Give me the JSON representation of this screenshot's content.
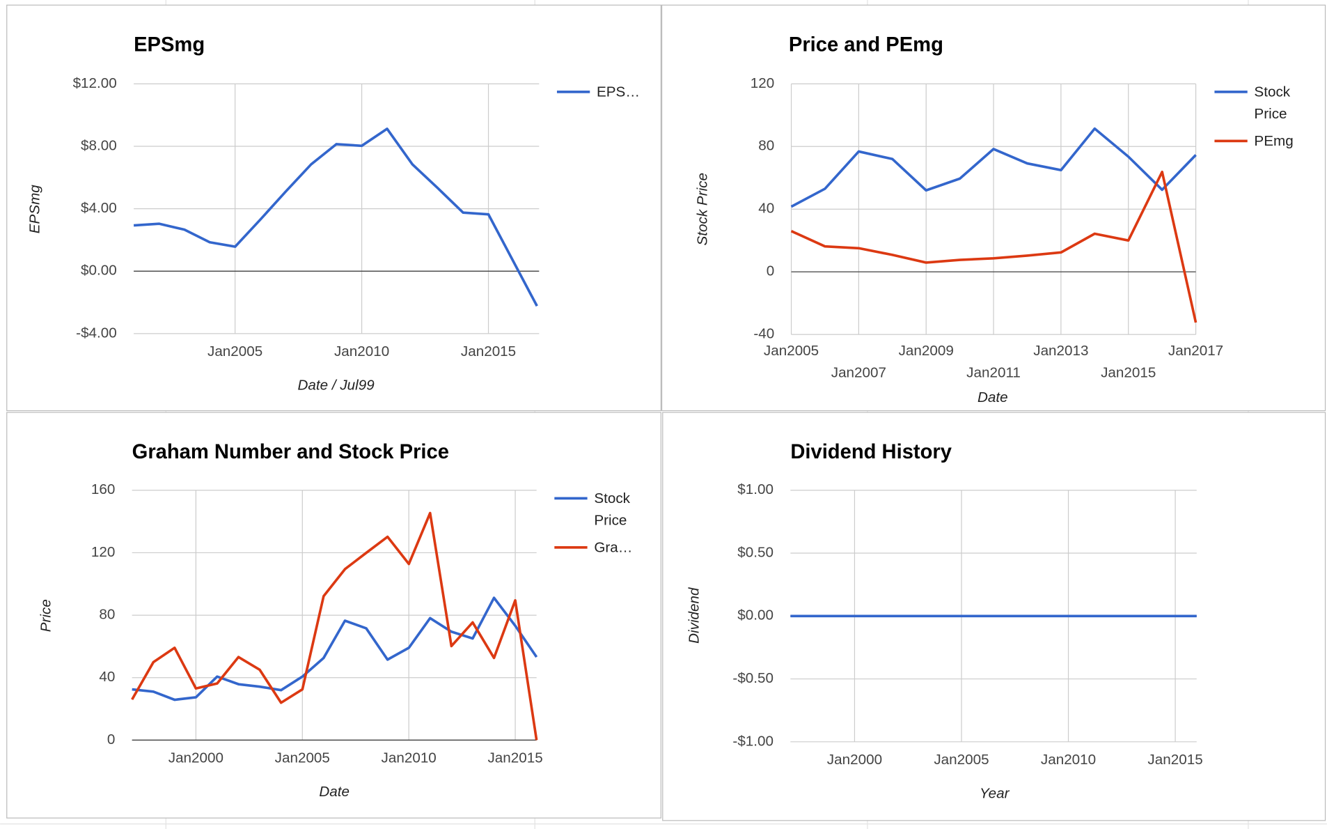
{
  "chart_data": [
    {
      "type": "line",
      "title": "EPSmg",
      "xlabel": "Date / Jul99",
      "ylabel": "EPSmg",
      "x": [
        "2001-01",
        "2002-01",
        "2003-01",
        "2004-01",
        "2005-01",
        "2006-01",
        "2007-01",
        "2008-01",
        "2009-01",
        "2010-01",
        "2011-01",
        "2012-01",
        "2013-01",
        "2014-01",
        "2015-01",
        "2016-12"
      ],
      "series": [
        {
          "name": "EPS…",
          "color": "#3366cc",
          "values": [
            2.93,
            3.04,
            2.66,
            1.85,
            1.57,
            3.31,
            5.1,
            6.84,
            8.14,
            8.03,
            9.12,
            6.84,
            5.32,
            3.75,
            3.64,
            -2.23
          ]
        }
      ],
      "xlim": [
        "2001-01",
        "2017-01"
      ],
      "xticks": [
        {
          "value": "2005-01",
          "label": "Jan2005"
        },
        {
          "value": "2010-01",
          "label": "Jan2010"
        },
        {
          "value": "2015-01",
          "label": "Jan2015"
        }
      ],
      "ylim": [
        -4,
        12
      ],
      "yticks": [
        {
          "value": 12,
          "label": "$12.00"
        },
        {
          "value": 8,
          "label": "$8.00"
        },
        {
          "value": 4,
          "label": "$4.00"
        },
        {
          "value": 0,
          "label": "$0.00"
        },
        {
          "value": -4,
          "label": "-$4.00"
        }
      ],
      "grid": true,
      "legend": "right"
    },
    {
      "type": "line",
      "title": "Price and PEmg",
      "xlabel": "Date",
      "ylabel": "Stock Price",
      "x": [
        "2005-01",
        "2006-01",
        "2007-01",
        "2008-01",
        "2009-01",
        "2010-01",
        "2011-01",
        "2012-01",
        "2013-01",
        "2014-01",
        "2015-01",
        "2016-01",
        "2017-01"
      ],
      "series": [
        {
          "name": "Stock Price",
          "color": "#3366cc",
          "values": [
            41.6,
            53,
            76.8,
            72,
            52,
            59.5,
            78.4,
            69.2,
            64.9,
            91.4,
            73.5,
            52.4,
            74.6
          ]
        },
        {
          "name": "PEmg",
          "color": "#dc3912",
          "values": [
            26,
            16.2,
            15.1,
            10.8,
            5.9,
            7.6,
            8.6,
            10.3,
            12.4,
            24.3,
            20,
            63.8,
            -32.4
          ]
        }
      ],
      "xlim": [
        "2005-01",
        "2017-01"
      ],
      "xticks": [
        {
          "value": "2005-01",
          "label": "Jan2005"
        },
        {
          "value": "2007-01",
          "label": "Jan2007"
        },
        {
          "value": "2009-01",
          "label": "Jan2009"
        },
        {
          "value": "2011-01",
          "label": "Jan2011"
        },
        {
          "value": "2013-01",
          "label": "Jan2013"
        },
        {
          "value": "2015-01",
          "label": "Jan2015"
        },
        {
          "value": "2017-01",
          "label": "Jan2017"
        }
      ],
      "ylim": [
        -40,
        120
      ],
      "yticks": [
        120,
        80,
        40,
        0,
        -40
      ],
      "grid": true,
      "legend": "right"
    },
    {
      "type": "line",
      "title": "Graham Number and Stock Price",
      "xlabel": "Date",
      "ylabel": "Price",
      "x": [
        "1997-01",
        "1998-01",
        "1999-01",
        "2000-01",
        "2001-01",
        "2002-01",
        "2003-01",
        "2004-01",
        "2005-01",
        "2006-01",
        "2007-01",
        "2008-01",
        "2009-01",
        "2010-01",
        "2011-01",
        "2012-01",
        "2013-01",
        "2014-01",
        "2015-01",
        "2016-01"
      ],
      "series": [
        {
          "name": "Stock Price",
          "color": "#3366cc",
          "values": [
            32.5,
            31,
            25.8,
            27.4,
            40.7,
            35.8,
            34.2,
            32,
            40.7,
            52.6,
            76.5,
            71.6,
            51.5,
            59.1,
            78.1,
            69.4,
            65.1,
            91.1,
            73.2,
            53.2
          ]
        },
        {
          "name": "Gra…",
          "color": "#dc3912",
          "values": [
            26,
            49.9,
            59.1,
            33.1,
            36.3,
            53.2,
            45,
            23.9,
            32.5,
            92.2,
            109.5,
            119.9,
            130.2,
            112.8,
            145.4,
            60.2,
            75.4,
            52.6,
            89.5,
            0
          ]
        }
      ],
      "xlim": [
        "1997-01",
        "2016-01"
      ],
      "xticks": [
        {
          "value": "2000-01",
          "label": "Jan2000"
        },
        {
          "value": "2005-01",
          "label": "Jan2005"
        },
        {
          "value": "2010-01",
          "label": "Jan2010"
        },
        {
          "value": "2015-01",
          "label": "Jan2015"
        }
      ],
      "ylim": [
        0,
        160
      ],
      "yticks": [
        160,
        120,
        80,
        40,
        0
      ],
      "grid": true,
      "legend": "right"
    },
    {
      "type": "line",
      "title": "Dividend History",
      "xlabel": "Year",
      "ylabel": "Dividend",
      "x": [
        "1997-01",
        "1998-01",
        "1999-01",
        "2000-01",
        "2001-01",
        "2002-01",
        "2003-01",
        "2004-01",
        "2005-01",
        "2006-01",
        "2007-01",
        "2008-01",
        "2009-01",
        "2010-01",
        "2011-01",
        "2012-01",
        "2013-01",
        "2014-01",
        "2015-01",
        "2016-01"
      ],
      "series": [
        {
          "color": "#3366cc",
          "values": [
            0,
            0,
            0,
            0,
            0,
            0,
            0,
            0,
            0,
            0,
            0,
            0,
            0,
            0,
            0,
            0,
            0,
            0,
            0,
            0
          ]
        }
      ],
      "xlim": [
        "1997-01",
        "2016-01"
      ],
      "xticks": [
        {
          "value": "2000-01",
          "label": "Jan2000"
        },
        {
          "value": "2005-01",
          "label": "Jan2005"
        },
        {
          "value": "2010-01",
          "label": "Jan2010"
        },
        {
          "value": "2015-01",
          "label": "Jan2015"
        }
      ],
      "ylim": [
        -1,
        1
      ],
      "yticks": [
        {
          "value": 1,
          "label": "$1.00"
        },
        {
          "value": 0.5,
          "label": "$0.50"
        },
        {
          "value": 0,
          "label": "$0.00"
        },
        {
          "value": -0.5,
          "label": "-$0.50"
        },
        {
          "value": -1,
          "label": "-$1.00"
        }
      ],
      "grid": true
    }
  ]
}
